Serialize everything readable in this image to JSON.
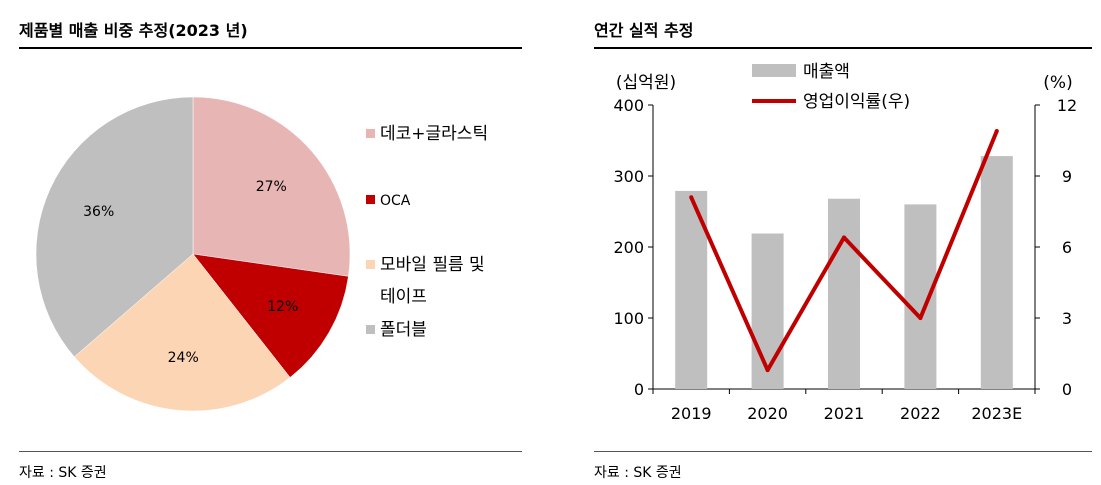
{
  "left": {
    "title": "제품별 매출 비중 추정(2023 년)",
    "source": "자료 : SK 증권"
  },
  "right": {
    "title": "연간 실적 추정",
    "source": "자료 : SK 증권"
  },
  "colors": {
    "pie": [
      "#e8b5b5",
      "#c00000",
      "#fcd5b4",
      "#bfbfbf"
    ],
    "bar": "#bfbfbf",
    "line": "#c00000"
  },
  "chart_data": [
    {
      "type": "pie",
      "title": "제품별 매출 비중 추정(2023 년)",
      "slices": [
        {
          "label": "데코+글라스틱",
          "value": 27,
          "display": "27%"
        },
        {
          "label": "OCA",
          "value": 12,
          "display": "12%"
        },
        {
          "label": "모바일 필름 및 테이프",
          "legend_lines": [
            "모바일 필름 및",
            "테이프"
          ],
          "value": 24,
          "display": "24%"
        },
        {
          "label": "폴더블",
          "value": 36,
          "display": "36%"
        }
      ],
      "legend_position": "right"
    },
    {
      "type": "bar+line",
      "title": "연간 실적 추정",
      "categories": [
        "2019",
        "2020",
        "2021",
        "2022",
        "2023E"
      ],
      "series": [
        {
          "name": "매출액",
          "type": "bar",
          "axis": "left",
          "values": [
            279,
            219,
            268,
            260,
            328
          ]
        },
        {
          "name": "영업이익률(우)",
          "type": "line",
          "axis": "right",
          "values": [
            8.1,
            0.8,
            6.4,
            3.0,
            10.9
          ]
        }
      ],
      "left_axis": {
        "unit": "(십억원)",
        "ylim": [
          0,
          400
        ],
        "ticks": [
          "0",
          "100",
          "200",
          "300",
          "400"
        ]
      },
      "right_axis": {
        "unit": "(%)",
        "ylim": [
          0,
          12
        ],
        "ticks": [
          "0",
          "3",
          "6",
          "9",
          "12"
        ]
      },
      "legend_position": "top"
    }
  ]
}
